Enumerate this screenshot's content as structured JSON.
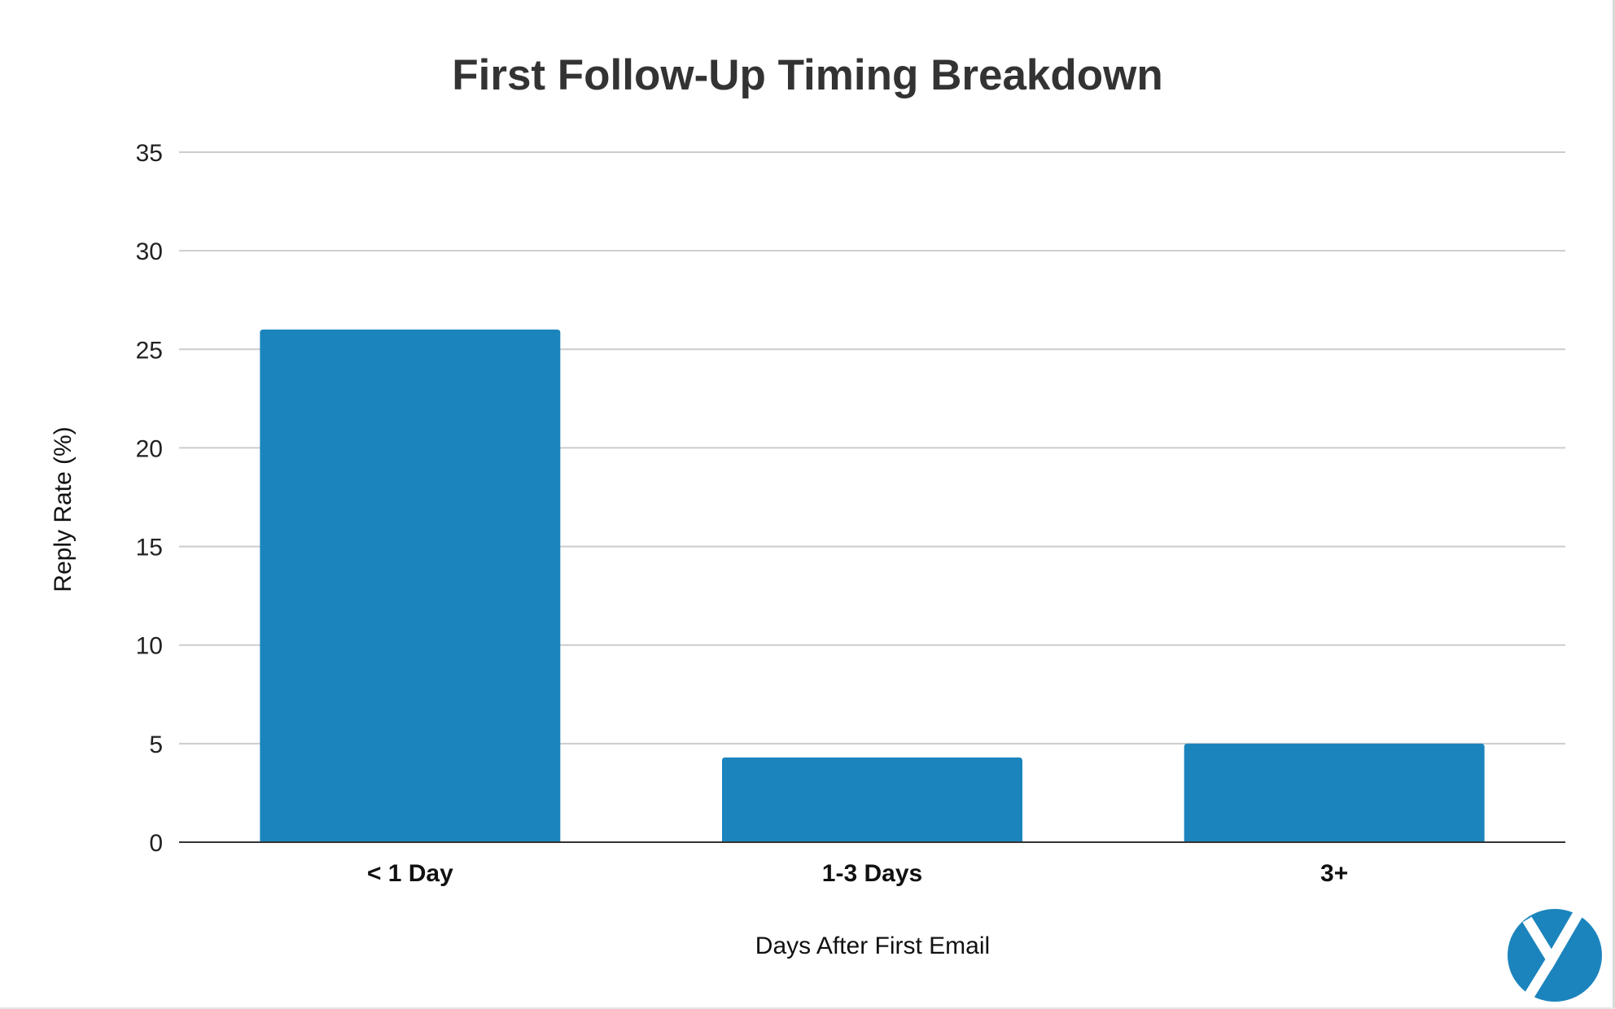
{
  "chart_data": {
    "type": "bar",
    "title": "First Follow-Up Timing Breakdown",
    "xlabel": "Days After First Email",
    "ylabel": "Reply Rate (%)",
    "categories": [
      "< 1 Day",
      "1-3 Days",
      "3+"
    ],
    "values": [
      26,
      4.3,
      5
    ],
    "ylim": [
      0,
      35
    ],
    "yticks": [
      0,
      5,
      10,
      15,
      20,
      25,
      30,
      35
    ],
    "grid": true,
    "legend": "none",
    "colors": {
      "bar": "#1b84bd",
      "grid": "#cccccc",
      "axis": "#333333",
      "title": "#333333",
      "logo": "#1b84bd"
    }
  },
  "logo": {
    "icon": "y-circle-logo"
  }
}
